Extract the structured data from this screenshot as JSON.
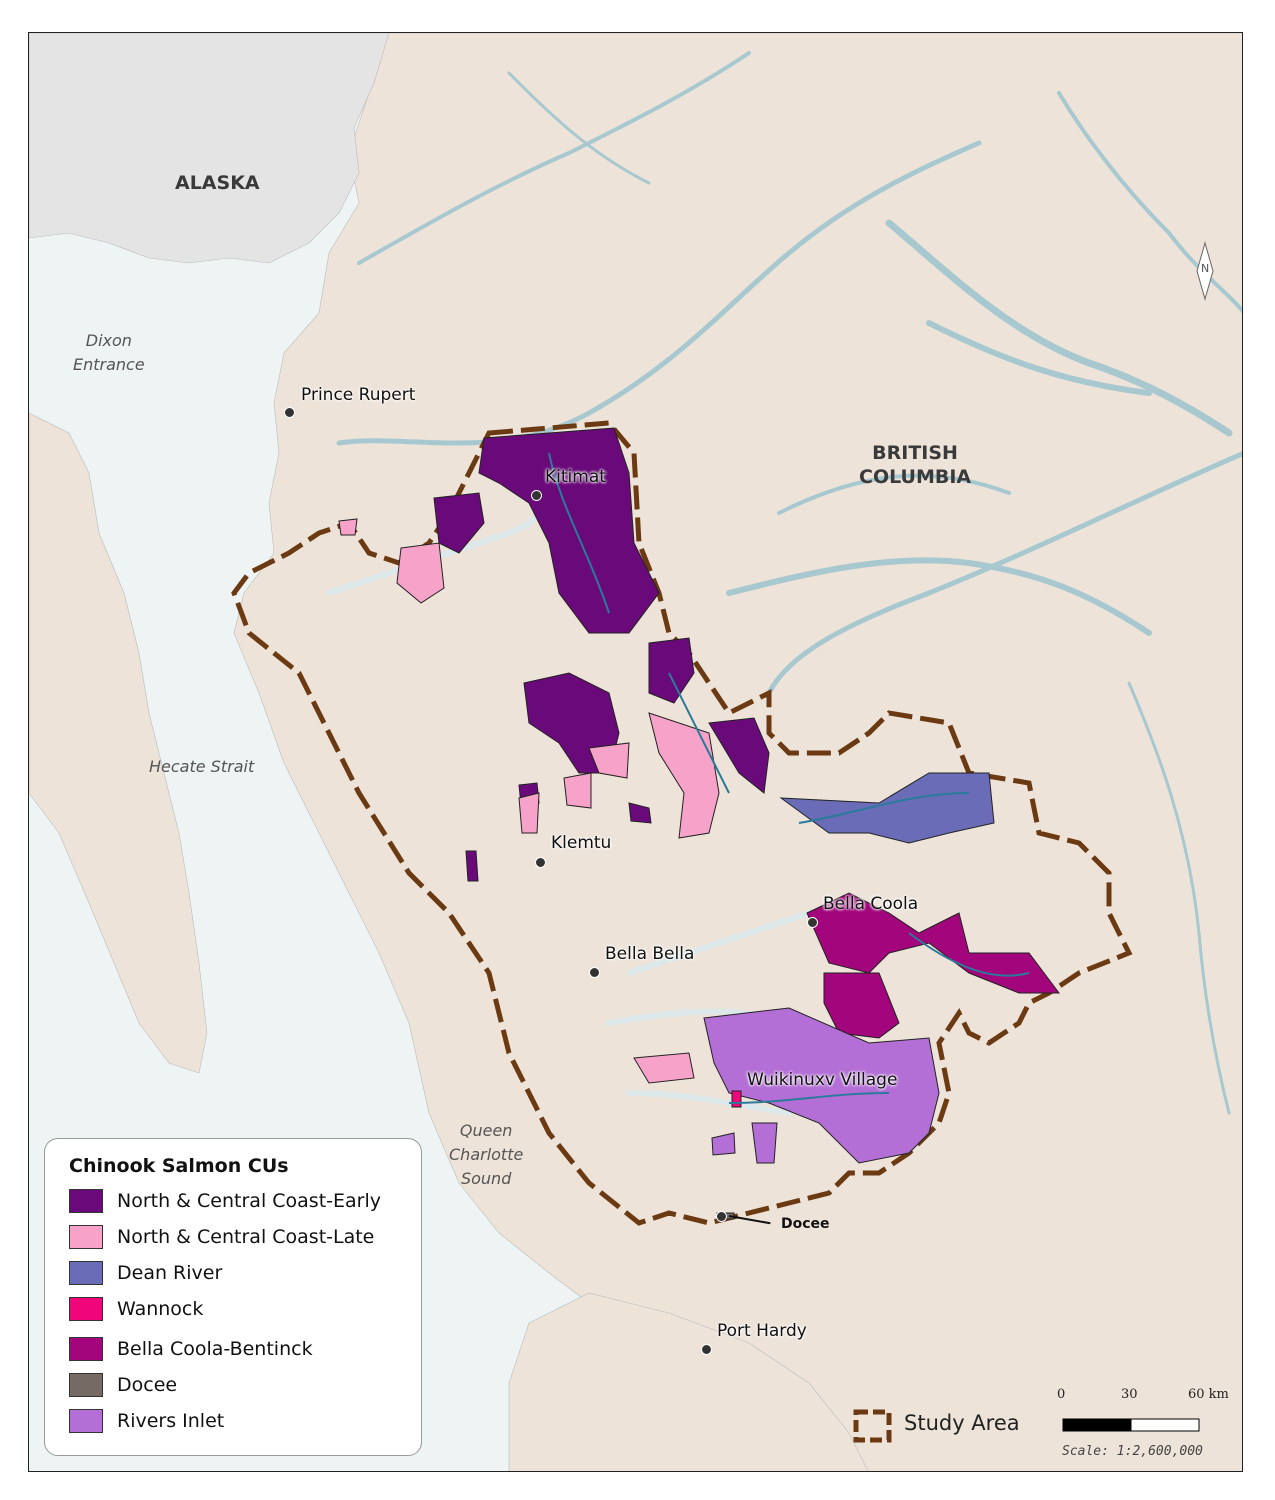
{
  "map": {
    "regions": {
      "alaska": "ALASKA",
      "british_columbia": [
        "BRITISH",
        "COLUMBIA"
      ]
    },
    "water_bodies": {
      "dixon_entrance": [
        "Dixon",
        "Entrance"
      ],
      "hecate_strait": "Hecate Strait",
      "queen_charlotte_sound": [
        "Queen",
        "Charlotte",
        "Sound"
      ]
    },
    "places": {
      "prince_rupert": "Prince Rupert",
      "kitimat": "Kitimat",
      "klemtu": "Klemtu",
      "bella_bella": "Bella Bella",
      "bella_coola": "Bella Coola",
      "wuikinuxv_village": "Wuikinuxv Village",
      "docee": "Docee",
      "port_hardy": "Port Hardy"
    },
    "north_arrow": "N"
  },
  "legend": {
    "title": "Chinook Salmon CUs",
    "items": [
      {
        "label": "North & Central Coast-Early",
        "color": "#6a0a7a"
      },
      {
        "label": "North & Central Coast-Late",
        "color": "#f7a3c9"
      },
      {
        "label": "Dean River",
        "color": "#6a6cb8"
      },
      {
        "label": "Wannock",
        "color": "#f0067a"
      },
      {
        "label": "Bella Coola-Bentinck",
        "color": "#a3067c"
      },
      {
        "label": "Docee",
        "color": "#756b64"
      },
      {
        "label": "Rivers Inlet",
        "color": "#b36fd6"
      }
    ]
  },
  "study_area": {
    "label": "Study Area",
    "color": "#6b3a12"
  },
  "scale_bar": {
    "ticks": [
      "0",
      "30",
      "60 km"
    ],
    "scale_text": "Scale: 1:2,600,000"
  },
  "colors": {
    "land": "#ede3d9",
    "alaska_land": "#e4e4e4",
    "water": "#eef3f3",
    "river": "#a8c8d0",
    "stream": "#2a7a9a"
  }
}
